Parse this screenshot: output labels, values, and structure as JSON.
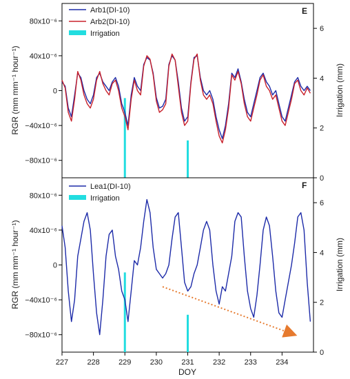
{
  "chart_data": [
    {
      "type": "line",
      "panel_label": "E",
      "x_range": [
        227,
        235
      ],
      "ylabel": "RGR (mm mm⁻¹ hour⁻¹)",
      "ylim": [
        -0.0001,
        0.0001
      ],
      "y_ticks": [
        -8e-05,
        -4e-05,
        0,
        4e-05,
        8e-05
      ],
      "y_tick_labels": [
        "−80x10⁻⁶",
        "−40x10⁻⁶",
        "0",
        "40x10⁻⁶",
        "80x10⁻⁶"
      ],
      "y2label": "Irrigation (mm)",
      "y2lim": [
        0,
        7
      ],
      "y2_ticks": [
        0,
        2,
        4,
        6
      ],
      "y2_tick_labels": [
        "0",
        "2",
        "4",
        "6"
      ],
      "grid": false,
      "legend_position": "top-left",
      "series": [
        {
          "name": "Arb1(DI-10)",
          "color": "#1c2aa8",
          "x": [
            227.0,
            227.1,
            227.2,
            227.3,
            227.4,
            227.5,
            227.6,
            227.7,
            227.8,
            227.9,
            228.0,
            228.1,
            228.2,
            228.3,
            228.4,
            228.5,
            228.6,
            228.7,
            228.8,
            228.9,
            229.0,
            229.1,
            229.2,
            229.3,
            229.4,
            229.5,
            229.6,
            229.7,
            229.8,
            229.9,
            230.0,
            230.1,
            230.2,
            230.3,
            230.4,
            230.5,
            230.6,
            230.7,
            230.8,
            230.9,
            231.0,
            231.1,
            231.2,
            231.3,
            231.4,
            231.5,
            231.6,
            231.7,
            231.8,
            231.9,
            232.0,
            232.1,
            232.2,
            232.3,
            232.4,
            232.5,
            232.6,
            232.7,
            232.8,
            232.9,
            233.0,
            233.1,
            233.2,
            233.3,
            233.4,
            233.5,
            233.6,
            233.7,
            233.8,
            233.9,
            234.0,
            234.1,
            234.2,
            234.3,
            234.4,
            234.5,
            234.6,
            234.7,
            234.8,
            234.9
          ],
          "values": [
            1e-05,
            5e-06,
            -2e-05,
            -3e-05,
            -5e-06,
            2e-05,
            1.5e-05,
            0,
            -1e-05,
            -1.5e-05,
            -5e-06,
            1.5e-05,
            2e-05,
            1e-05,
            5e-06,
            0,
            1e-05,
            1.5e-05,
            5e-06,
            -1.5e-05,
            -2.5e-05,
            -4e-05,
            -5e-06,
            1.5e-05,
            5e-06,
            0,
            3e-05,
            3.8e-05,
            3.5e-05,
            2e-05,
            -8e-06,
            -2e-05,
            -1.8e-05,
            -1e-05,
            3e-05,
            4e-05,
            3.5e-05,
            1e-05,
            -2e-05,
            -3.5e-05,
            -3e-05,
            1e-05,
            3.8e-05,
            4e-05,
            1.5e-05,
            0,
            -5e-06,
            0,
            -1e-05,
            -3e-05,
            -4.5e-05,
            -5.5e-05,
            -4e-05,
            -1.5e-05,
            2e-05,
            1.5e-05,
            2.5e-05,
            1e-05,
            -1e-05,
            -2.5e-05,
            -3e-05,
            -1.5e-05,
            0,
            1.5e-05,
            2e-05,
            1e-05,
            5e-06,
            -5e-06,
            0,
            -1.5e-05,
            -3e-05,
            -3.5e-05,
            -2e-05,
            -5e-06,
            1e-05,
            1.5e-05,
            5e-06,
            0,
            5e-06,
            0
          ]
        },
        {
          "name": "Arb2(DI-10)",
          "color": "#c8202a",
          "x": [
            227.0,
            227.1,
            227.2,
            227.3,
            227.4,
            227.5,
            227.6,
            227.7,
            227.8,
            227.9,
            228.0,
            228.1,
            228.2,
            228.3,
            228.4,
            228.5,
            228.6,
            228.7,
            228.8,
            228.9,
            229.0,
            229.1,
            229.2,
            229.3,
            229.4,
            229.5,
            229.6,
            229.7,
            229.8,
            229.9,
            230.0,
            230.1,
            230.2,
            230.3,
            230.4,
            230.5,
            230.6,
            230.7,
            230.8,
            230.9,
            231.0,
            231.1,
            231.2,
            231.3,
            231.4,
            231.5,
            231.6,
            231.7,
            231.8,
            231.9,
            232.0,
            232.1,
            232.2,
            232.3,
            232.4,
            232.5,
            232.6,
            232.7,
            232.8,
            232.9,
            233.0,
            233.1,
            233.2,
            233.3,
            233.4,
            233.5,
            233.6,
            233.7,
            233.8,
            233.9,
            234.0,
            234.1,
            234.2,
            234.3,
            234.4,
            234.5,
            234.6,
            234.7,
            234.8,
            234.9
          ],
          "values": [
            1.2e-05,
            3e-06,
            -2.5e-05,
            -3.5e-05,
            -1e-05,
            2.2e-05,
            1.2e-05,
            -5e-06,
            -1.5e-05,
            -2e-05,
            -1e-05,
            1.2e-05,
            2.2e-05,
            8e-06,
            0,
            -5e-06,
            8e-06,
            1.2e-05,
            0,
            -2e-05,
            -3e-05,
            -4.5e-05,
            -1e-05,
            1.2e-05,
            0,
            -5e-06,
            2.8e-05,
            4e-05,
            3.6e-05,
            1.8e-05,
            -1.2e-05,
            -2.5e-05,
            -2.2e-05,
            -1.5e-05,
            2.8e-05,
            4.2e-05,
            3.5e-05,
            5e-06,
            -2.5e-05,
            -4e-05,
            -3.5e-05,
            8e-06,
            3.6e-05,
            4.2e-05,
            1.2e-05,
            -5e-06,
            -1e-05,
            -5e-06,
            -1.5e-05,
            -3.5e-05,
            -5.2e-05,
            -6e-05,
            -4.5e-05,
            -2e-05,
            1.8e-05,
            1.2e-05,
            2.2e-05,
            8e-06,
            -1.5e-05,
            -3e-05,
            -3.5e-05,
            -2e-05,
            -5e-06,
            1.2e-05,
            1.8e-05,
            5e-06,
            0,
            -1e-05,
            -5e-06,
            -2e-05,
            -3.5e-05,
            -4e-05,
            -2.5e-05,
            -1e-05,
            8e-06,
            1.2e-05,
            0,
            -5e-06,
            3e-06,
            -3e-06
          ]
        }
      ],
      "irrigation": {
        "name": "Irrigation",
        "color": "#22dde0",
        "x": [
          229.0,
          231.0
        ],
        "values": [
          3.2,
          1.5
        ]
      }
    },
    {
      "type": "line",
      "panel_label": "F",
      "xlabel": "DOY",
      "x_range": [
        227,
        235
      ],
      "x_ticks": [
        227,
        228,
        229,
        230,
        231,
        232,
        233,
        234
      ],
      "x_tick_labels": [
        "227",
        "228",
        "229",
        "230",
        "231",
        "232",
        "233",
        "234"
      ],
      "ylabel": "RGR (mm mm⁻¹ hour⁻¹)",
      "ylim": [
        -0.0001,
        0.0001
      ],
      "y_ticks": [
        -8e-05,
        -4e-05,
        0,
        4e-05,
        8e-05
      ],
      "y_tick_labels": [
        "−80x10⁻⁶",
        "−40x10⁻⁶",
        "0",
        "40x10⁻⁶",
        "80x10⁻⁶"
      ],
      "y2label": "Irrigation (mm)",
      "y2lim": [
        0,
        7
      ],
      "y2_ticks": [
        0,
        2,
        4,
        6
      ],
      "y2_tick_labels": [
        "0",
        "2",
        "4",
        "6"
      ],
      "grid": false,
      "legend_position": "top-left",
      "series": [
        {
          "name": "Lea1(DI-10)",
          "color": "#1c2aa8",
          "x": [
            227.0,
            227.1,
            227.2,
            227.3,
            227.4,
            227.5,
            227.6,
            227.7,
            227.8,
            227.9,
            228.0,
            228.1,
            228.2,
            228.3,
            228.4,
            228.5,
            228.6,
            228.7,
            228.8,
            228.9,
            229.0,
            229.1,
            229.2,
            229.3,
            229.4,
            229.5,
            229.6,
            229.7,
            229.8,
            229.9,
            230.0,
            230.1,
            230.2,
            230.3,
            230.4,
            230.5,
            230.6,
            230.7,
            230.8,
            230.9,
            231.0,
            231.1,
            231.2,
            231.3,
            231.4,
            231.5,
            231.6,
            231.7,
            231.8,
            231.9,
            232.0,
            232.1,
            232.2,
            232.3,
            232.4,
            232.5,
            232.6,
            232.7,
            232.8,
            232.9,
            233.0,
            233.1,
            233.2,
            233.3,
            233.4,
            233.5,
            233.6,
            233.7,
            233.8,
            233.9,
            234.0,
            234.1,
            234.2,
            234.3,
            234.4,
            234.5,
            234.6,
            234.7,
            234.8,
            234.9
          ],
          "values": [
            4.5e-05,
            2e-05,
            -3e-05,
            -6.5e-05,
            -4e-05,
            1e-05,
            3e-05,
            5e-05,
            6e-05,
            4e-05,
            -1e-05,
            -5.5e-05,
            -8e-05,
            -4e-05,
            1e-05,
            3.5e-05,
            4e-05,
            1e-05,
            -5e-06,
            -3e-05,
            -4e-05,
            -6.5e-05,
            -3e-05,
            5e-06,
            0,
            2e-05,
            5e-05,
            7.5e-05,
            6e-05,
            2e-05,
            -5e-06,
            -1e-05,
            -1.5e-05,
            -1e-05,
            0,
            3e-05,
            5.5e-05,
            6e-05,
            2e-05,
            -2e-05,
            -3e-05,
            -2.5e-05,
            -1e-05,
            0,
            2e-05,
            4e-05,
            5e-05,
            4e-05,
            0,
            -3e-05,
            -4.5e-05,
            -2.5e-05,
            -3e-05,
            -1e-05,
            1e-05,
            5e-05,
            6e-05,
            5.5e-05,
            1e-05,
            -3e-05,
            -5e-05,
            -6e-05,
            -3.5e-05,
            0,
            4e-05,
            5.5e-05,
            4.5e-05,
            1e-05,
            -3e-05,
            -5.5e-05,
            -6e-05,
            -4e-05,
            -2e-05,
            0,
            2.5e-05,
            5.5e-05,
            6e-05,
            4e-05,
            -2e-05,
            -6.5e-05
          ]
        }
      ],
      "irrigation": {
        "name": "Irrigation",
        "color": "#22dde0",
        "x": [
          229.0,
          231.0
        ],
        "values": [
          3.2,
          1.5
        ]
      },
      "annotation": {
        "type": "dotted-arrow",
        "color": "#e67a2e",
        "from_x": 230.2,
        "from_y": -2.5e-05,
        "to_x": 234.4,
        "to_y": -8e-05
      }
    }
  ]
}
